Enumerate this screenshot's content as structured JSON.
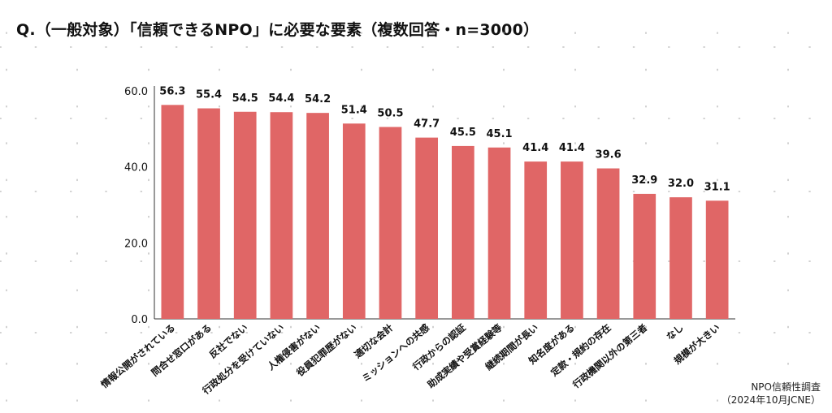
{
  "title": "Q.（一般対象）「信頼できるNPO」に必要な要素（複数回答・n=3000）",
  "source": {
    "line1": "NPO信頼性調査",
    "line2": "（2024年10月JCNE）"
  },
  "colors": {
    "bar": "#e06666",
    "axis": "#333333",
    "grid_dots": "#b7b7b7",
    "text": "#111111"
  },
  "chart_data": {
    "type": "bar",
    "title": "",
    "xlabel": "",
    "ylabel": "",
    "ylim": [
      0,
      60
    ],
    "yticks": [
      0,
      20,
      40,
      60
    ],
    "ytick_labels": [
      "0.0",
      "20.0",
      "40.0",
      "60.0"
    ],
    "grid": false,
    "categories": [
      "情報公開がされている",
      "問合せ窓口がある",
      "反社でない",
      "行政処分を受けていない",
      "人権侵害がない",
      "役員犯罪歴がない",
      "適切な会計",
      "ミッションへの共感",
      "行政からの認証",
      "助成実績や受賞経験等",
      "継続期間が長い",
      "知名度がある",
      "定款・規約の存在",
      "行政機関以外の第三者",
      "なし",
      "規模が大きい"
    ],
    "values": [
      56.3,
      55.4,
      54.5,
      54.4,
      54.2,
      51.4,
      50.5,
      47.7,
      45.5,
      45.1,
      41.4,
      41.4,
      39.6,
      32.9,
      32.0,
      31.1
    ],
    "value_labels": [
      "56.3",
      "55.4",
      "54.5",
      "54.4",
      "54.2",
      "51.4",
      "50.5",
      "47.7",
      "45.5",
      "45.1",
      "41.4",
      "41.4",
      "39.6",
      "32.9",
      "32.0",
      "31.1"
    ]
  }
}
